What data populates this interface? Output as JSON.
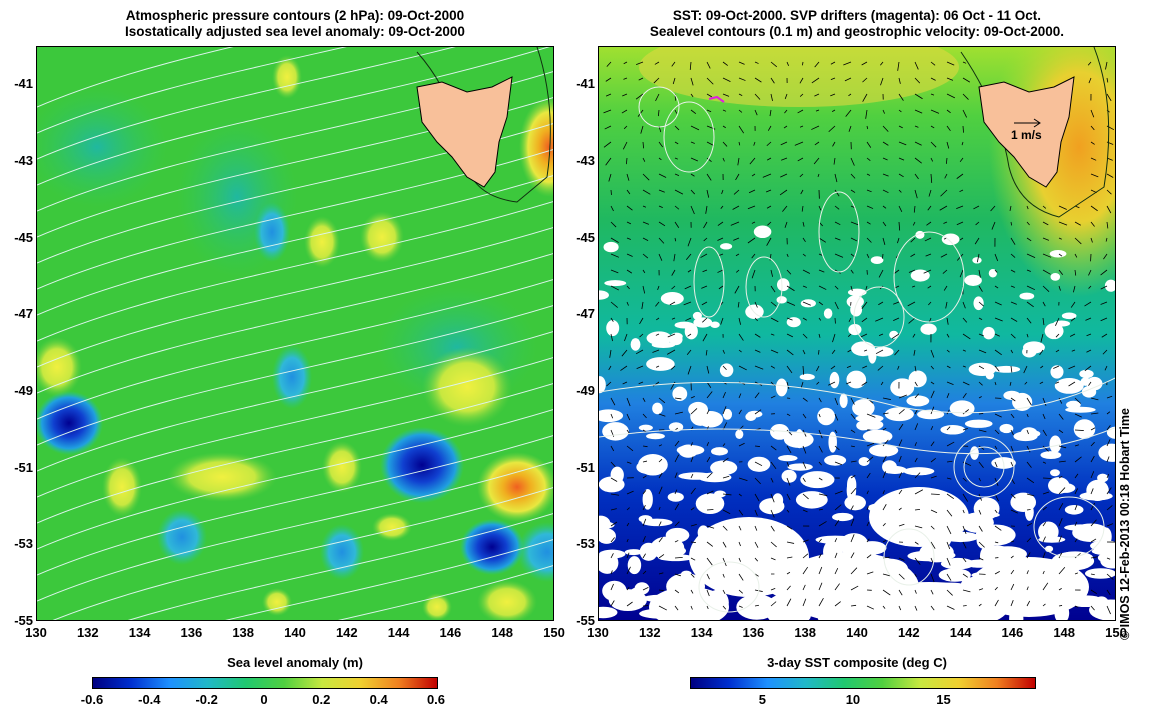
{
  "left_panel": {
    "title_line1": "Atmospheric pressure contours (2 hPa): 09-Oct-2000",
    "title_line2": "Isostatically adjusted sea level anomaly: 09-Oct-2000",
    "colorbar_label": "Sea level anomaly (m)",
    "colorbar_ticks": [
      "-0.6",
      "-0.4",
      "-0.2",
      "0",
      "0.2",
      "0.4",
      "0.6"
    ]
  },
  "right_panel": {
    "title_line1": "SST: 09-Oct-2000. SVP drifters (magenta): 06 Oct - 11 Oct.",
    "title_line2": "Sealevel contours (0.1 m) and geostrophic velocity: 09-Oct-2000.",
    "colorbar_label": "3-day SST composite (deg C)",
    "colorbar_ticks": [
      "5",
      "10",
      "15"
    ],
    "velocity_scale_label": "1 m/s"
  },
  "axes": {
    "y_ticks": [
      "-41",
      "-43",
      "-45",
      "-47",
      "-49",
      "-51",
      "-53",
      "-55"
    ],
    "x_ticks": [
      "130",
      "132",
      "134",
      "136",
      "138",
      "140",
      "142",
      "144",
      "146",
      "148",
      "150"
    ],
    "lat_range": [
      -55,
      -40
    ],
    "lon_range": [
      130,
      150
    ]
  },
  "copyright": "© IMOS 12-Feb-2013 00:18 Hobart Time",
  "colors": {
    "land": "#f8c09a",
    "ocean_green": "#22c83c",
    "pressure_contour": "#d8f0e8",
    "anomaly_scale": [
      "#000080",
      "#1e90ff",
      "#00c8a0",
      "#40d040",
      "#e8e840",
      "#f0a020",
      "#c00000"
    ],
    "sst_scale": [
      "#000080",
      "#0050e0",
      "#00b4e0",
      "#20c850",
      "#a0e020",
      "#f0c000",
      "#c00000"
    ]
  }
}
